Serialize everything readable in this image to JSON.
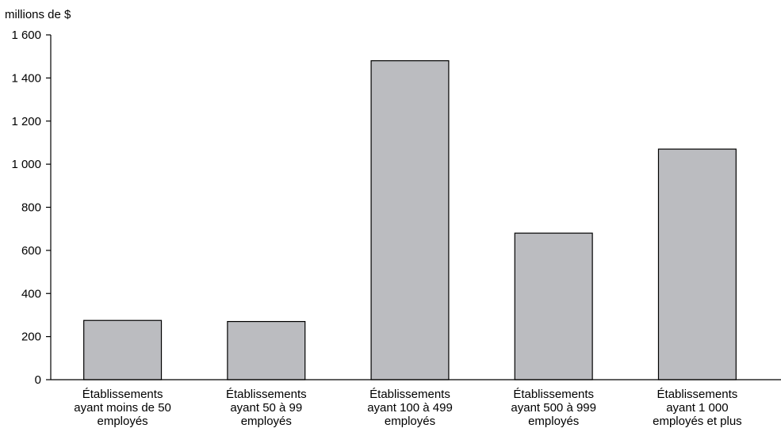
{
  "chart_data": {
    "type": "bar",
    "title": "",
    "xlabel": "",
    "ylabel": "millions de $",
    "ylim": [
      0,
      1600
    ],
    "yticks": [
      0,
      200,
      400,
      600,
      800,
      1000,
      1200,
      1400,
      1600
    ],
    "ytick_labels": [
      "0",
      "200",
      "400",
      "600",
      "800",
      "1 000",
      "1 200",
      "1 400",
      "1 600"
    ],
    "grid": false,
    "legend": "none",
    "categories": [
      [
        "Établissements",
        "ayant moins de 50",
        "employés"
      ],
      [
        "Établissements",
        "ayant 50 à 99",
        "employés"
      ],
      [
        "Établissements",
        "ayant 100 à 499",
        "employés"
      ],
      [
        "Établissements",
        "ayant 500 à 999",
        "employés"
      ],
      [
        "Établissements",
        "ayant 1 000",
        "employés et plus"
      ]
    ],
    "values": [
      275,
      270,
      1480,
      680,
      1070
    ],
    "colors": {
      "bar_fill": "#bbbcc0",
      "bar_stroke": "#000000",
      "axis": "#000000"
    }
  }
}
